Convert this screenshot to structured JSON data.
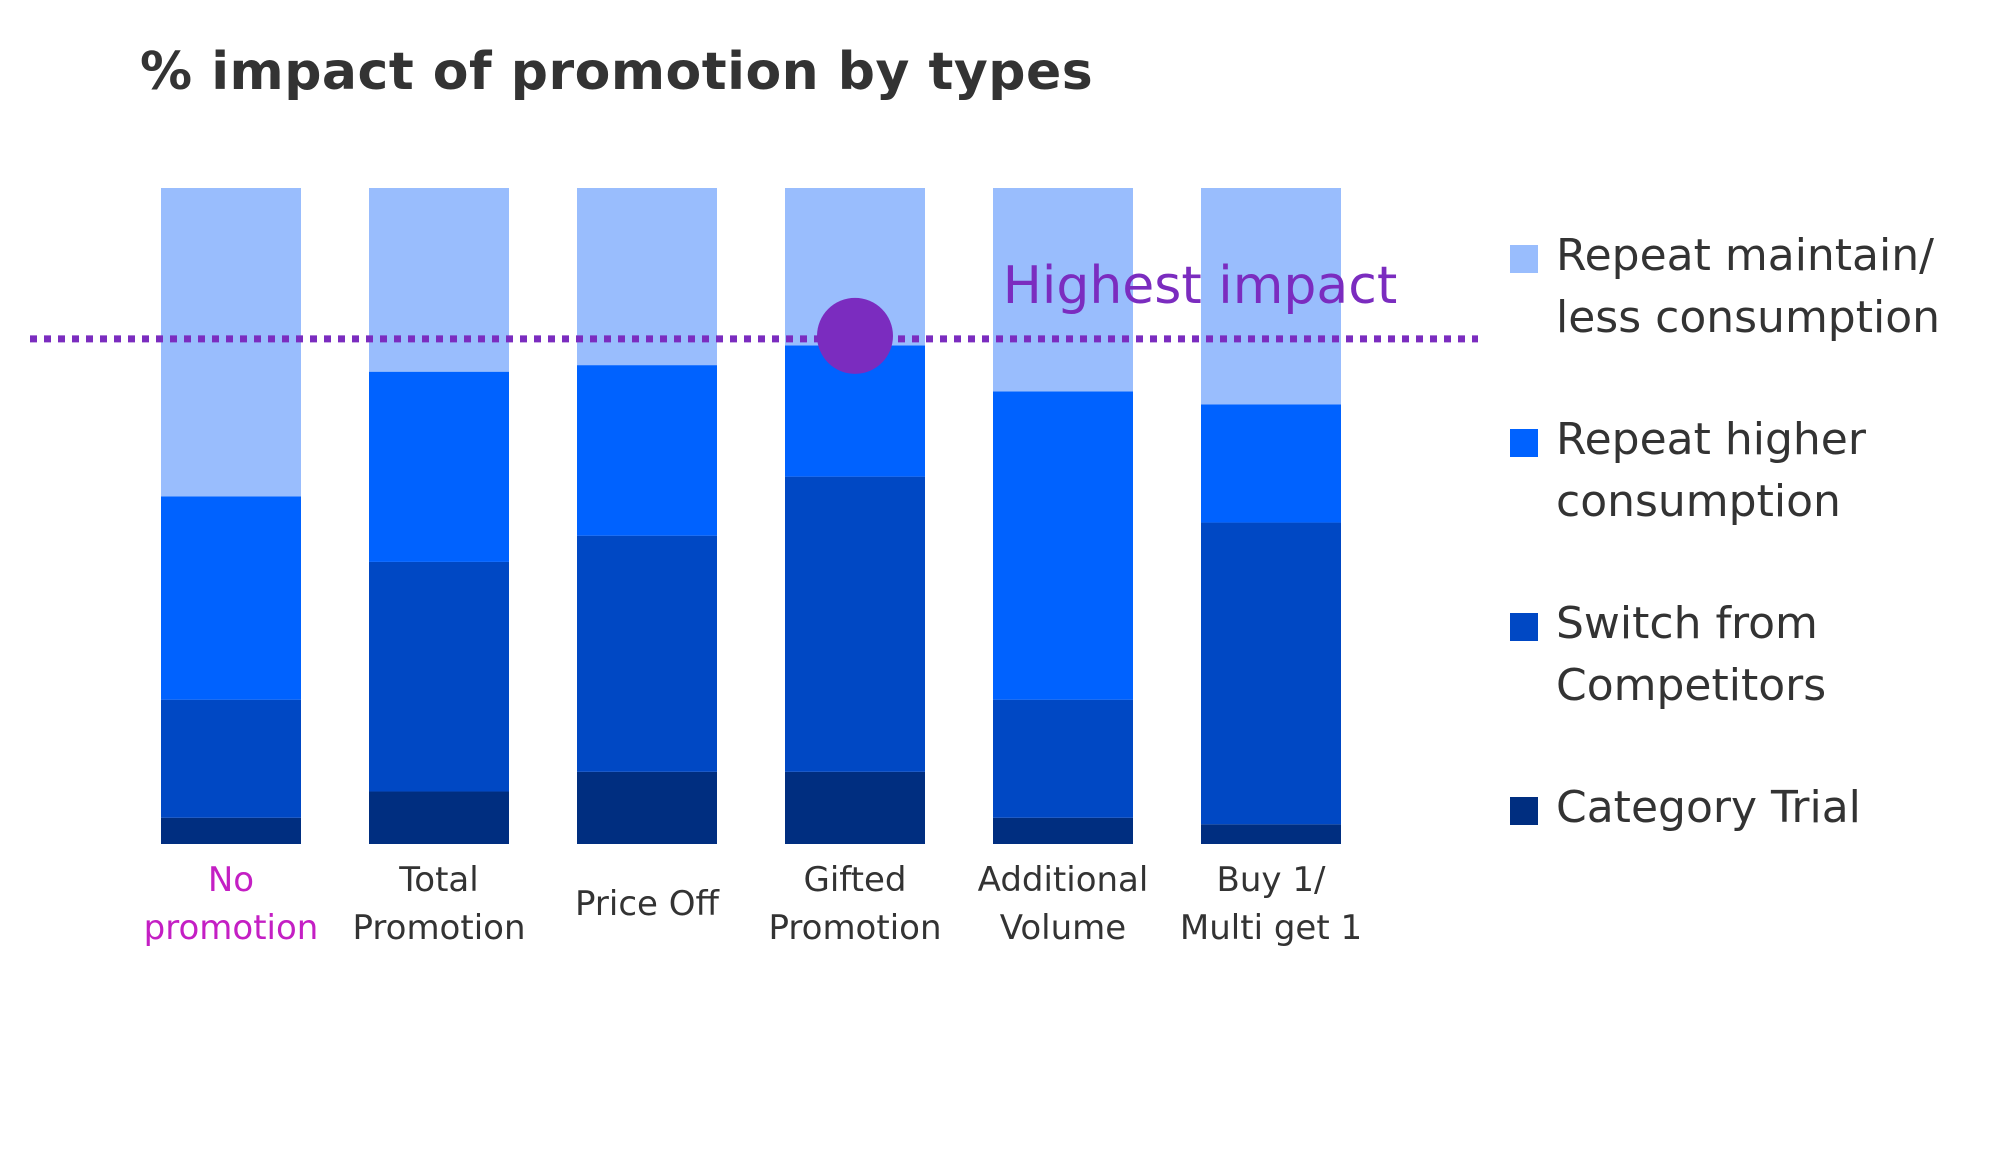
{
  "title": "% impact of promotion by types",
  "annotation": "Highest impact",
  "colors": {
    "highlight": "#7b2cbf",
    "highlight_category": "#c41fc4",
    "axis_text": "#333333"
  },
  "legend": [
    {
      "label": "Repeat maintain/\nless consumption",
      "color": "#99bdfd"
    },
    {
      "label": "Repeat higher\nconsumption",
      "color": "#0062ff"
    },
    {
      "label": "Switch from\nCompetitors",
      "color": "#0048c4"
    },
    {
      "label": "Category Trial",
      "color": "#002e80"
    }
  ],
  "chart_data": {
    "type": "bar",
    "stacked": true,
    "normalized": true,
    "title": "% impact of promotion by types",
    "categories": [
      "No\npromotion",
      "Total\nPromotion",
      "Price Off",
      "Gifted\nPromotion",
      "Additional\nVolume",
      "Buy 1/\nMulti get 1"
    ],
    "highlight_category_index": 0,
    "ylim": [
      0,
      100
    ],
    "series": [
      {
        "name": "Category Trial",
        "color": "#002e80",
        "values": [
          4,
          8,
          11,
          11,
          4,
          3
        ]
      },
      {
        "name": "Switch from Competitors",
        "color": "#0048c4",
        "values": [
          18,
          35,
          36,
          45,
          18,
          46
        ]
      },
      {
        "name": "Repeat higher consumption",
        "color": "#0062ff",
        "values": [
          31,
          29,
          26,
          20,
          47,
          18
        ]
      },
      {
        "name": "Repeat maintain/ less consumption",
        "color": "#99bdfd",
        "values": [
          47,
          28,
          27,
          24,
          31,
          33
        ]
      }
    ],
    "reference_line": {
      "value": 77,
      "label": "Highest impact",
      "marker_category_index": 3
    }
  }
}
